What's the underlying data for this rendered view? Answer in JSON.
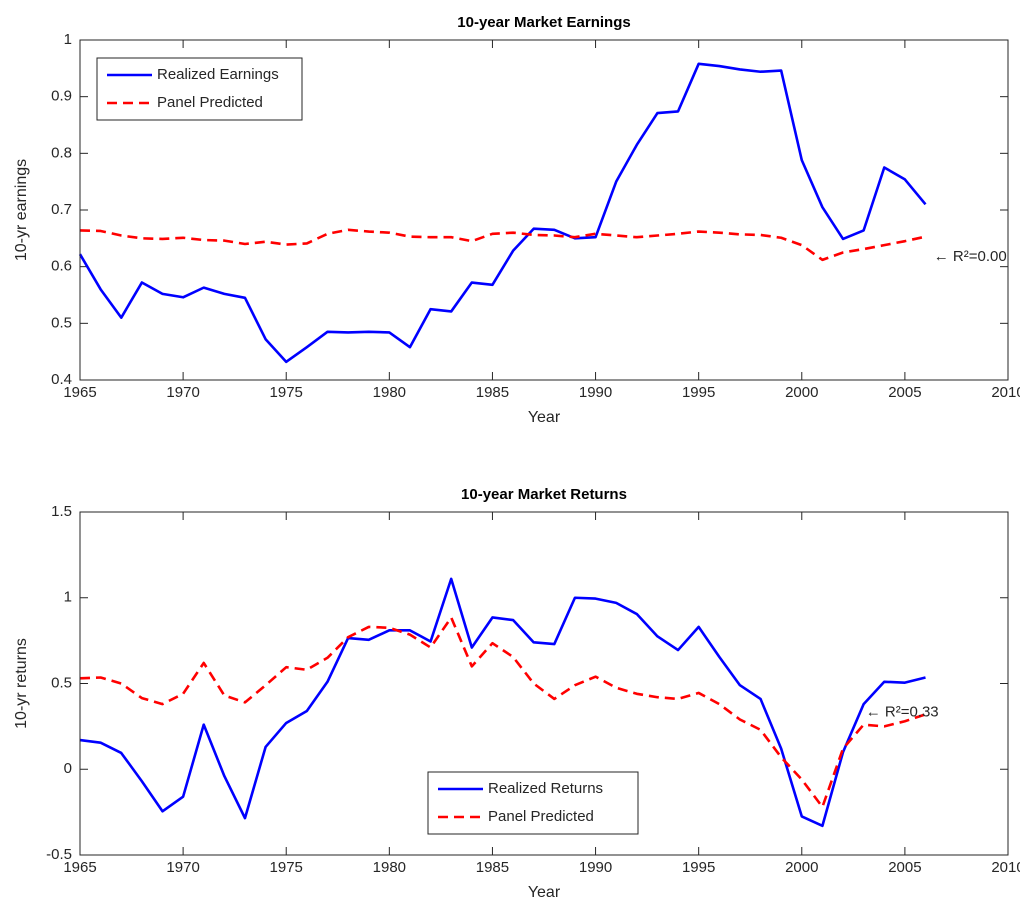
{
  "chart_data": [
    {
      "type": "line",
      "title": "10-year Market Earnings",
      "xlabel": "Year",
      "ylabel": "10-yr earnings",
      "x": [
        1965,
        1966,
        1967,
        1968,
        1969,
        1970,
        1971,
        1972,
        1973,
        1974,
        1975,
        1976,
        1977,
        1978,
        1979,
        1980,
        1981,
        1982,
        1983,
        1984,
        1985,
        1986,
        1987,
        1988,
        1989,
        1990,
        1991,
        1992,
        1993,
        1994,
        1995,
        1996,
        1997,
        1998,
        1999,
        2000,
        2001,
        2002,
        2003,
        2004,
        2005,
        2006
      ],
      "series": [
        {
          "name": "Realized Earnings",
          "color": "#0000ff",
          "linestyle": "solid",
          "values": [
            0.622,
            0.56,
            0.51,
            0.572,
            0.552,
            0.546,
            0.563,
            0.552,
            0.545,
            0.472,
            0.432,
            0.458,
            0.485,
            0.484,
            0.485,
            0.484,
            0.458,
            0.525,
            0.521,
            0.572,
            0.568,
            0.628,
            0.667,
            0.665,
            0.65,
            0.652,
            0.75,
            0.815,
            0.871,
            0.874,
            0.958,
            0.954,
            0.948,
            0.944,
            0.946,
            0.788,
            0.705,
            0.649,
            0.664,
            0.775,
            0.754,
            0.71
          ]
        },
        {
          "name": "Panel Predicted",
          "color": "#ff0000",
          "linestyle": "dashed",
          "values": [
            0.664,
            0.663,
            0.655,
            0.65,
            0.649,
            0.651,
            0.647,
            0.646,
            0.64,
            0.644,
            0.639,
            0.641,
            0.658,
            0.665,
            0.662,
            0.66,
            0.653,
            0.652,
            0.652,
            0.645,
            0.658,
            0.66,
            0.656,
            0.655,
            0.652,
            0.658,
            0.655,
            0.652,
            0.655,
            0.658,
            0.662,
            0.66,
            0.657,
            0.656,
            0.651,
            0.638,
            0.612,
            0.625,
            0.631,
            0.638,
            0.645,
            0.653
          ]
        }
      ],
      "xlim": [
        1965,
        2010
      ],
      "xticks": [
        1965,
        1970,
        1975,
        1980,
        1985,
        1990,
        1995,
        2000,
        2005,
        2010
      ],
      "ylim": [
        0.4,
        1
      ],
      "yticks": [
        0.4,
        0.5,
        0.6,
        0.7,
        0.8,
        0.9,
        1
      ],
      "legend": "upper left",
      "annotation": "← R²=0.00"
    },
    {
      "type": "line",
      "title": "10-year Market Returns",
      "xlabel": "Year",
      "ylabel": "10-yr returns",
      "x": [
        1965,
        1966,
        1967,
        1968,
        1969,
        1970,
        1971,
        1972,
        1973,
        1974,
        1975,
        1976,
        1977,
        1978,
        1979,
        1980,
        1981,
        1982,
        1983,
        1984,
        1985,
        1986,
        1987,
        1988,
        1989,
        1990,
        1991,
        1992,
        1993,
        1994,
        1995,
        1996,
        1997,
        1998,
        1999,
        2000,
        2001,
        2002,
        2003,
        2004,
        2005,
        2006
      ],
      "series": [
        {
          "name": "Realized Returns",
          "color": "#0000ff",
          "linestyle": "solid",
          "values": [
            0.17,
            0.155,
            0.095,
            -0.07,
            -0.245,
            -0.16,
            0.26,
            -0.04,
            -0.285,
            0.13,
            0.27,
            0.34,
            0.51,
            0.765,
            0.755,
            0.81,
            0.81,
            0.745,
            1.11,
            0.71,
            0.885,
            0.87,
            0.74,
            0.73,
            1.0,
            0.995,
            0.97,
            0.905,
            0.775,
            0.695,
            0.83,
            0.655,
            0.49,
            0.41,
            0.12,
            -0.275,
            -0.33,
            0.1,
            0.38,
            0.51,
            0.505,
            0.535
          ]
        },
        {
          "name": "Panel Predicted",
          "color": "#ff0000",
          "linestyle": "dashed",
          "values": [
            0.53,
            0.535,
            0.5,
            0.415,
            0.38,
            0.44,
            0.62,
            0.43,
            0.39,
            0.49,
            0.595,
            0.58,
            0.65,
            0.77,
            0.83,
            0.825,
            0.785,
            0.71,
            0.885,
            0.6,
            0.735,
            0.655,
            0.5,
            0.41,
            0.49,
            0.54,
            0.475,
            0.44,
            0.42,
            0.41,
            0.445,
            0.38,
            0.29,
            0.23,
            0.07,
            -0.06,
            -0.22,
            0.12,
            0.26,
            0.25,
            0.28,
            0.32
          ]
        }
      ],
      "xlim": [
        1965,
        2010
      ],
      "xticks": [
        1965,
        1970,
        1975,
        1980,
        1985,
        1990,
        1995,
        2000,
        2005,
        2010
      ],
      "ylim": [
        -0.5,
        1.5
      ],
      "yticks": [
        -0.5,
        0,
        0.5,
        1,
        1.5
      ],
      "legend": "lower center",
      "annotation": "← R²=0.33"
    }
  ]
}
